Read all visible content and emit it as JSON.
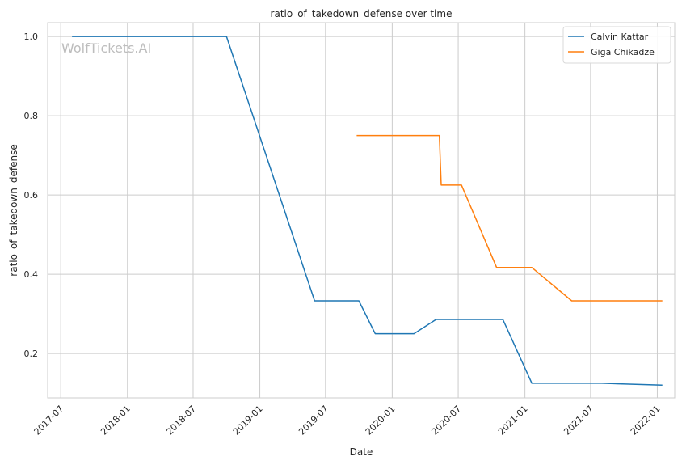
{
  "chart_data": {
    "type": "line",
    "title": "ratio_of_takedown_defense over time",
    "xlabel": "Date",
    "ylabel": "ratio_of_takedown_defense",
    "watermark": "WolfTickets.AI",
    "x_ticks": [
      "2017-07",
      "2018-01",
      "2018-07",
      "2019-01",
      "2019-07",
      "2020-01",
      "2020-07",
      "2021-01",
      "2021-07",
      "2022-01"
    ],
    "y_ticks": [
      "0.2",
      "0.4",
      "0.6",
      "0.8",
      "1.0"
    ],
    "xlim": [
      "2017-05-26",
      "2022-02-18"
    ],
    "ylim": [
      0.088,
      1.035
    ],
    "grid": true,
    "legend_position": "top-right",
    "series": [
      {
        "name": "Calvin Kattar",
        "color": "#1f77b4",
        "points": [
          [
            "2017-08-01",
            1.0
          ],
          [
            "2018-10-01",
            1.0
          ],
          [
            "2019-06-01",
            0.333
          ],
          [
            "2019-10-01",
            0.333
          ],
          [
            "2019-11-15",
            0.25
          ],
          [
            "2020-03-01",
            0.25
          ],
          [
            "2020-05-01",
            0.286
          ],
          [
            "2020-11-01",
            0.286
          ],
          [
            "2021-01-20",
            0.125
          ],
          [
            "2021-08-01",
            0.125
          ],
          [
            "2022-01-15",
            0.12
          ]
        ]
      },
      {
        "name": "Giga Chikadze",
        "color": "#ff7f0e",
        "points": [
          [
            "2019-09-25",
            0.75
          ],
          [
            "2020-05-10",
            0.75
          ],
          [
            "2020-05-15",
            0.625
          ],
          [
            "2020-07-10",
            0.625
          ],
          [
            "2020-10-15",
            0.417
          ],
          [
            "2021-01-20",
            0.417
          ],
          [
            "2021-05-10",
            0.333
          ],
          [
            "2022-01-15",
            0.333
          ]
        ]
      }
    ]
  }
}
